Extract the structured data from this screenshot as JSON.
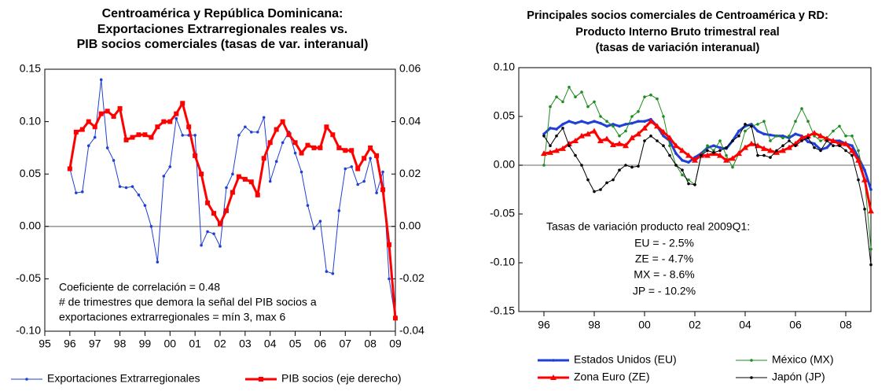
{
  "chart_data": [
    {
      "type": "line",
      "title": [
        "Centroamérica y República Dominicana:",
        "Exportaciones Extrarregionales reales vs.",
        "PIB socios comerciales (tasas de var. interanual)"
      ],
      "x": [
        1996,
        1996.25,
        1996.5,
        1996.75,
        1997,
        1997.25,
        1997.5,
        1997.75,
        1998,
        1998.25,
        1998.5,
        1998.75,
        1999,
        1999.25,
        1999.5,
        1999.75,
        2000,
        2000.25,
        2000.5,
        2000.75,
        2001,
        2001.25,
        2001.5,
        2001.75,
        2002,
        2002.25,
        2002.5,
        2002.75,
        2003,
        2003.25,
        2003.5,
        2003.75,
        2004,
        2004.25,
        2004.5,
        2004.75,
        2005,
        2005.25,
        2005.5,
        2005.75,
        2006,
        2006.25,
        2006.5,
        2006.75,
        2007,
        2007.25,
        2007.5,
        2007.75,
        2008,
        2008.25,
        2008.5,
        2008.75,
        2009
      ],
      "xlim": [
        1995,
        2009
      ],
      "xticks": [
        {
          "value": 1995,
          "label": "95"
        },
        {
          "value": 1996,
          "label": "96"
        },
        {
          "value": 1997,
          "label": "97"
        },
        {
          "value": 1998,
          "label": "98"
        },
        {
          "value": 1999,
          "label": "99"
        },
        {
          "value": 2000,
          "label": "00"
        },
        {
          "value": 2001,
          "label": "01"
        },
        {
          "value": 2002,
          "label": "02"
        },
        {
          "value": 2003,
          "label": "03"
        },
        {
          "value": 2004,
          "label": "04"
        },
        {
          "value": 2005,
          "label": "05"
        },
        {
          "value": 2006,
          "label": "06"
        },
        {
          "value": 2007,
          "label": "07"
        },
        {
          "value": 2008,
          "label": "08"
        },
        {
          "value": 2009,
          "label": "09"
        }
      ],
      "ylim": [
        -0.1,
        0.15
      ],
      "yticks": [
        {
          "value": -0.1,
          "label": "-0.10"
        },
        -0.05,
        {
          "value": 0,
          "label": "0.00"
        },
        0.05,
        {
          "value": 0.1,
          "label": "0.10"
        },
        0.15
      ],
      "y2lim": [
        -0.04,
        0.06
      ],
      "y2ticks": [
        -0.04,
        -0.02,
        {
          "value": 0,
          "label": "0.00"
        },
        0.02,
        0.04,
        0.06
      ],
      "series": [
        {
          "name": "Exportaciones Extrarregionales",
          "color": "#1f3fd6",
          "line_width": 1,
          "marker": "dot",
          "values": [
            0.055,
            0.032,
            0.033,
            0.077,
            0.085,
            0.14,
            0.075,
            0.063,
            0.038,
            0.037,
            0.038,
            0.03,
            0.02,
            0.0,
            -0.034,
            0.048,
            0.057,
            0.103,
            0.087,
            0.087,
            0.087,
            -0.018,
            -0.005,
            -0.007,
            -0.019,
            0.037,
            0.05,
            0.087,
            0.095,
            0.09,
            0.09,
            0.104,
            0.043,
            0.062,
            0.08,
            0.09,
            0.07,
            0.052,
            0.02,
            -0.002,
            0.005,
            -0.043,
            -0.045,
            0.015,
            0.055,
            0.057,
            0.04,
            0.043,
            0.065,
            0.032,
            0.052,
            -0.05,
            -0.088
          ]
        },
        {
          "name": "PIB socios (eje derecho)",
          "color": "#ff0000",
          "line_width": 3,
          "marker": "square",
          "axis": "y2",
          "values": [
            0.022,
            0.036,
            0.037,
            0.04,
            0.038,
            0.043,
            0.044,
            0.042,
            0.045,
            0.033,
            0.034,
            0.035,
            0.035,
            0.034,
            0.038,
            0.04,
            0.04,
            0.043,
            0.047,
            0.038,
            0.027,
            0.02,
            0.009,
            0.005,
            0.001,
            0.006,
            0.013,
            0.019,
            0.018,
            0.017,
            0.012,
            0.026,
            0.032,
            0.037,
            0.04,
            0.035,
            0.032,
            0.028,
            0.031,
            0.03,
            0.03,
            0.038,
            0.035,
            0.03,
            0.029,
            0.029,
            0.022,
            0.026,
            0.03,
            0.027,
            0.014,
            -0.007,
            -0.035
          ]
        }
      ],
      "annotations": [
        "Coeficiente de correlación = 0.48",
        "# de trimestres que demora la señal del PIB socios a",
        "exportaciones extrarregionales = mín 3, max 6"
      ],
      "legend": "bottom"
    },
    {
      "type": "line",
      "title": [
        "Principales socios comerciales de Centroamérica y RD:",
        "Producto Interno Bruto trimestral real",
        "(tasas de variación interanual)"
      ],
      "x": [
        1996,
        1996.25,
        1996.5,
        1996.75,
        1997,
        1997.25,
        1997.5,
        1997.75,
        1998,
        1998.25,
        1998.5,
        1998.75,
        1999,
        1999.25,
        1999.5,
        1999.75,
        2000,
        2000.25,
        2000.5,
        2000.75,
        2001,
        2001.25,
        2001.5,
        2001.75,
        2002,
        2002.25,
        2002.5,
        2002.75,
        2003,
        2003.25,
        2003.5,
        2003.75,
        2004,
        2004.25,
        2004.5,
        2004.75,
        2005,
        2005.25,
        2005.5,
        2005.75,
        2006,
        2006.25,
        2006.5,
        2006.75,
        2007,
        2007.25,
        2007.5,
        2007.75,
        2008,
        2008.25,
        2008.5,
        2008.75,
        2009
      ],
      "xlim": [
        1995,
        2009
      ],
      "xticks": [
        {
          "value": 1996,
          "label": "96"
        },
        {
          "value": 1998,
          "label": "98"
        },
        {
          "value": 2000,
          "label": "00"
        },
        {
          "value": 2002,
          "label": "02"
        },
        {
          "value": 2004,
          "label": "04"
        },
        {
          "value": 2006,
          "label": "06"
        },
        {
          "value": 2008,
          "label": "08"
        }
      ],
      "ylim": [
        -0.15,
        0.1
      ],
      "yticks": [
        -0.15,
        {
          "value": -0.1,
          "label": "-0.10"
        },
        -0.05,
        {
          "value": 0,
          "label": "0.00"
        },
        0.05,
        {
          "value": 0.1,
          "label": "0.10"
        }
      ],
      "series": [
        {
          "name": "Estados Unidos (EU)",
          "color": "#1f3fd6",
          "line_width": 3,
          "marker": "dot",
          "values": [
            0.032,
            0.038,
            0.037,
            0.042,
            0.045,
            0.043,
            0.045,
            0.043,
            0.045,
            0.043,
            0.04,
            0.042,
            0.04,
            0.042,
            0.043,
            0.045,
            0.045,
            0.047,
            0.04,
            0.03,
            0.025,
            0.012,
            0.005,
            0.003,
            0.008,
            0.012,
            0.018,
            0.02,
            0.018,
            0.017,
            0.025,
            0.035,
            0.04,
            0.042,
            0.035,
            0.032,
            0.031,
            0.03,
            0.03,
            0.028,
            0.032,
            0.03,
            0.024,
            0.022,
            0.016,
            0.018,
            0.025,
            0.025,
            0.022,
            0.02,
            0.008,
            -0.005,
            -0.025
          ]
        },
        {
          "name": "México (MX)",
          "color": "#1e8c1e",
          "line_width": 1,
          "marker": "dot",
          "values": [
            0.0,
            0.06,
            0.07,
            0.065,
            0.08,
            0.07,
            0.075,
            0.06,
            0.065,
            0.05,
            0.045,
            0.04,
            0.03,
            0.035,
            0.05,
            0.055,
            0.07,
            0.072,
            0.068,
            0.05,
            0.02,
            0.0,
            -0.01,
            -0.015,
            -0.02,
            0.01,
            0.02,
            0.015,
            0.025,
            0.01,
            -0.002,
            0.012,
            0.035,
            0.04,
            0.042,
            0.045,
            0.025,
            0.03,
            0.028,
            0.03,
            0.045,
            0.058,
            0.045,
            0.03,
            0.025,
            0.028,
            0.035,
            0.04,
            0.03,
            0.03,
            0.015,
            -0.015,
            -0.086
          ]
        },
        {
          "name": "Zona Euro (ZE)",
          "color": "#ff0000",
          "line_width": 3,
          "marker": "triangle",
          "values": [
            0.012,
            0.013,
            0.015,
            0.017,
            0.022,
            0.025,
            0.03,
            0.032,
            0.035,
            0.025,
            0.027,
            0.021,
            0.022,
            0.02,
            0.028,
            0.032,
            0.038,
            0.045,
            0.04,
            0.034,
            0.028,
            0.02,
            0.015,
            0.01,
            0.005,
            0.01,
            0.01,
            0.012,
            0.01,
            0.005,
            0.007,
            0.012,
            0.018,
            0.022,
            0.02,
            0.017,
            0.015,
            0.013,
            0.015,
            0.018,
            0.022,
            0.028,
            0.03,
            0.033,
            0.03,
            0.027,
            0.025,
            0.022,
            0.022,
            0.015,
            0.005,
            -0.015,
            -0.047
          ]
        },
        {
          "name": "Japón (JP)",
          "color": "#000000",
          "line_width": 1,
          "marker": "dot",
          "values": [
            0.03,
            0.02,
            0.03,
            0.038,
            0.02,
            0.01,
            0.0,
            -0.015,
            -0.027,
            -0.025,
            -0.018,
            -0.015,
            -0.005,
            0.0,
            -0.002,
            -0.001,
            0.025,
            0.03,
            0.025,
            0.02,
            0.01,
            0.0,
            -0.005,
            -0.019,
            -0.02,
            0.01,
            0.015,
            0.013,
            0.015,
            0.018,
            0.025,
            0.03,
            0.042,
            0.04,
            0.01,
            0.01,
            0.008,
            0.015,
            0.02,
            0.025,
            0.02,
            0.025,
            0.028,
            0.018,
            0.015,
            0.025,
            0.02,
            0.02,
            0.015,
            0.01,
            -0.015,
            -0.045,
            -0.102
          ]
        }
      ],
      "annotations": [
        "Tasas de variación producto real 2009Q1:",
        "EU = - 2.5%",
        "ZE = - 4.7%",
        "MX = - 8.6%",
        "JP = - 10.2%"
      ],
      "legend": "bottom"
    }
  ]
}
